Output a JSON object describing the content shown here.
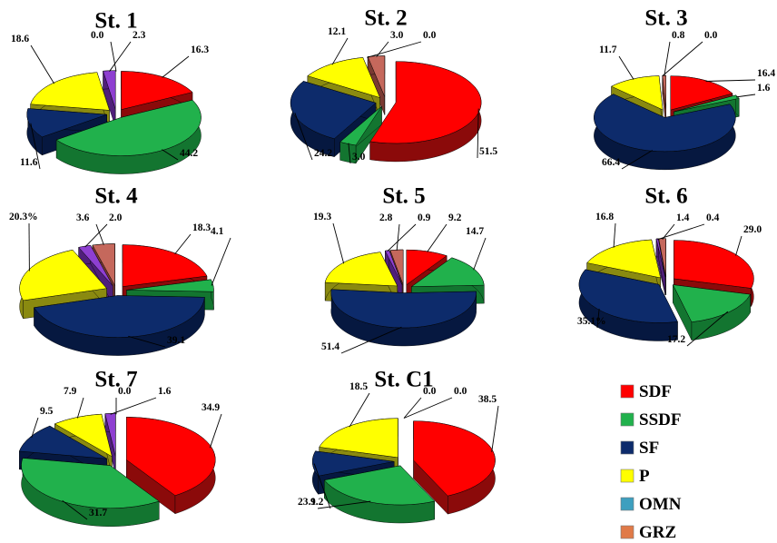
{
  "colors": {
    "SDF": {
      "top": "#ff0000",
      "side": "#8b0a0a"
    },
    "SSDF": {
      "top": "#21b14c",
      "side": "#137530"
    },
    "SF": {
      "top": "#0d2b6b",
      "side": "#061840"
    },
    "P": {
      "top": "#ffff00",
      "side": "#8a8a10"
    },
    "OMN": {
      "top": "#8e3fd1",
      "side": "#4f1f7a"
    },
    "GRZ": {
      "top": "#c5685c",
      "side": "#7a3a32"
    }
  },
  "legend": {
    "items": [
      {
        "key": "SDF",
        "label": "SDF",
        "color": "#ff0000"
      },
      {
        "key": "SSDF",
        "label": "SSDF",
        "color": "#21b14c"
      },
      {
        "key": "SF",
        "label": "SF",
        "color": "#0d2b6b"
      },
      {
        "key": "P",
        "label": "P",
        "color": "#ffff00"
      },
      {
        "key": "OMN",
        "label": "OMN",
        "color": "#3d9fbf"
      },
      {
        "key": "GRZ",
        "label": "GRZ",
        "color": "#e07a48"
      }
    ]
  },
  "chart_data": [
    {
      "type": "pie",
      "title": "St. 1",
      "categories": [
        "SDF",
        "SSDF",
        "SF",
        "P",
        "OMN",
        "GRZ"
      ],
      "values": [
        16.3,
        44.2,
        11.6,
        18.6,
        2.3,
        0.0
      ],
      "labels": [
        "16.3",
        "44.2",
        "11.6",
        "18.6",
        "2.3",
        "0.0"
      ]
    },
    {
      "type": "pie",
      "title": "St. 2",
      "categories": [
        "SDF",
        "SSDF",
        "SF",
        "P",
        "OMN",
        "GRZ"
      ],
      "values": [
        51.5,
        3.0,
        24.2,
        12.1,
        0.0,
        3.0
      ],
      "labels": [
        "51.5",
        "3.0",
        "24.2",
        "12.1",
        "0.0",
        "3.0"
      ]
    },
    {
      "type": "pie",
      "title": "St. 3",
      "categories": [
        "SDF",
        "SSDF",
        "SF",
        "P",
        "OMN",
        "GRZ"
      ],
      "values": [
        16.4,
        1.6,
        66.4,
        11.7,
        0.0,
        0.8
      ],
      "labels": [
        "16.4",
        "1.6",
        "66.4",
        "11.7",
        "0.0",
        "0.8"
      ]
    },
    {
      "type": "pie",
      "title": "St. 4",
      "categories": [
        "SDF",
        "SSDF",
        "SF",
        "P",
        "OMN",
        "GRZ"
      ],
      "values": [
        18.3,
        4.1,
        39.1,
        20.3,
        2.0,
        3.6
      ],
      "labels": [
        "18.3",
        "4.1",
        "39.1",
        "20.3%",
        "2.0",
        "3.6"
      ]
    },
    {
      "type": "pie",
      "title": "St. 5",
      "categories": [
        "SDF",
        "SSDF",
        "SF",
        "P",
        "OMN",
        "GRZ"
      ],
      "values": [
        9.2,
        14.7,
        51.4,
        19.3,
        0.9,
        2.8
      ],
      "labels": [
        "9.2",
        "14.7",
        "51.4",
        "19.3",
        "0.9",
        "2.8"
      ]
    },
    {
      "type": "pie",
      "title": "St. 6",
      "categories": [
        "SDF",
        "SSDF",
        "SF",
        "P",
        "OMN",
        "GRZ"
      ],
      "values": [
        29.0,
        17.2,
        35.1,
        16.8,
        0.4,
        1.4
      ],
      "labels": [
        "29.0",
        "17.2",
        "35.1%",
        "16.8",
        "0.4",
        "1.4"
      ]
    },
    {
      "type": "pie",
      "title": "St. 7",
      "categories": [
        "SDF",
        "SSDF",
        "SF",
        "P",
        "OMN",
        "GRZ"
      ],
      "values": [
        34.9,
        31.7,
        9.5,
        7.9,
        1.6,
        0.0
      ],
      "labels": [
        "34.9",
        "31.7",
        "9.5",
        "7.9",
        "1.6",
        "0.0"
      ]
    },
    {
      "type": "pie",
      "title": "St. C1",
      "categories": [
        "SDF",
        "SSDF",
        "SF",
        "P",
        "OMN",
        "GRZ"
      ],
      "values": [
        38.5,
        23.1,
        9.2,
        18.5,
        0.0,
        0.0
      ],
      "labels": [
        "38.5",
        "23.1",
        "9.2",
        "18.5",
        "0.0",
        "0.0"
      ]
    }
  ]
}
